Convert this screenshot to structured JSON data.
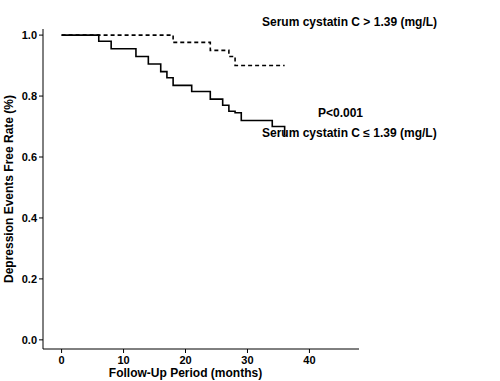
{
  "chart_data": {
    "type": "step",
    "x_label": "Follow-Up Period (months)",
    "y_label": "Depression Events Free Rate (%)",
    "xlim": [
      -3,
      48
    ],
    "xticks": [
      0,
      10,
      20,
      30,
      40
    ],
    "ylim": [
      -0.03,
      1.02
    ],
    "yticks": [
      {
        "value": 0,
        "label": "0.0"
      },
      {
        "value": 0.2,
        "label": "0.2"
      },
      {
        "value": 0.4,
        "label": "0.4"
      },
      {
        "value": 0.6,
        "label": "0.6"
      },
      {
        "value": 0.8,
        "label": "0.8"
      },
      {
        "value": 1,
        "label": "1.0"
      }
    ],
    "series": [
      {
        "name": "Serum cystatin C > 1.39 (mg/L)",
        "color": "#000000",
        "line_style": "dashed",
        "x": [
          0,
          18,
          24,
          27,
          28,
          36
        ],
        "values": [
          1.0,
          0.976,
          0.95,
          0.93,
          0.9,
          0.9
        ]
      },
      {
        "name": "Serum cystatin C ≤ 1.39 (mg/L)",
        "color": "#000000",
        "line_style": "solid",
        "x": [
          0,
          6,
          8,
          12,
          14,
          16,
          17,
          18,
          21,
          24,
          26,
          27,
          28,
          29,
          34,
          36
        ],
        "values": [
          1.0,
          0.98,
          0.955,
          0.93,
          0.905,
          0.88,
          0.86,
          0.835,
          0.815,
          0.79,
          0.77,
          0.75,
          0.745,
          0.72,
          0.7,
          0.67
        ]
      }
    ],
    "annotations": [
      "P<0.001"
    ]
  }
}
